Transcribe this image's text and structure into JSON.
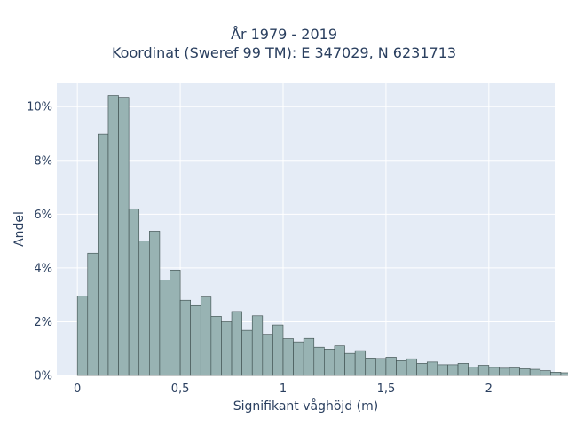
{
  "chart_data": {
    "type": "bar",
    "title": "År 1979 - 2019",
    "subtitle": "Koordinat (Sweref 99 TM): E 347029, N 6231713",
    "xlabel": "Signifikant våghöjd (m)",
    "ylabel": "Andel",
    "xlim": [
      -0.1,
      2.32
    ],
    "ylim": [
      0,
      0.109
    ],
    "x_ticks": [
      0,
      0.5,
      1,
      1.5,
      2
    ],
    "x_tick_labels": [
      "0",
      "0,5",
      "1",
      "1,5",
      "2"
    ],
    "y_ticks": [
      0,
      0.02,
      0.04,
      0.06,
      0.08,
      0.1
    ],
    "y_tick_labels": [
      "0%",
      "2%",
      "4%",
      "6%",
      "8%",
      "10%"
    ],
    "grid": true,
    "bin_start": 0,
    "bin_width": 0.05,
    "values": [
      0.0295,
      0.0455,
      0.0898,
      0.1042,
      0.1035,
      0.062,
      0.05,
      0.0537,
      0.0355,
      0.0392,
      0.028,
      0.026,
      0.0292,
      0.022,
      0.02,
      0.0238,
      0.0168,
      0.0222,
      0.0153,
      0.0188,
      0.0137,
      0.0125,
      0.0138,
      0.0105,
      0.0098,
      0.011,
      0.0082,
      0.0092,
      0.0065,
      0.0063,
      0.0068,
      0.0055,
      0.0062,
      0.0045,
      0.005,
      0.004,
      0.004,
      0.0045,
      0.0032,
      0.0038,
      0.003,
      0.0027,
      0.0028,
      0.0025,
      0.0023,
      0.0018,
      0.0012,
      0.001,
      0.0004,
      0.0002
    ]
  },
  "colors": {
    "plot_bg": "#e5ecf6",
    "grid": "#ffffff",
    "bar_fill": "#98b3b3",
    "bar_stroke": "#3a4a4a",
    "text": "#2a3f5f"
  }
}
